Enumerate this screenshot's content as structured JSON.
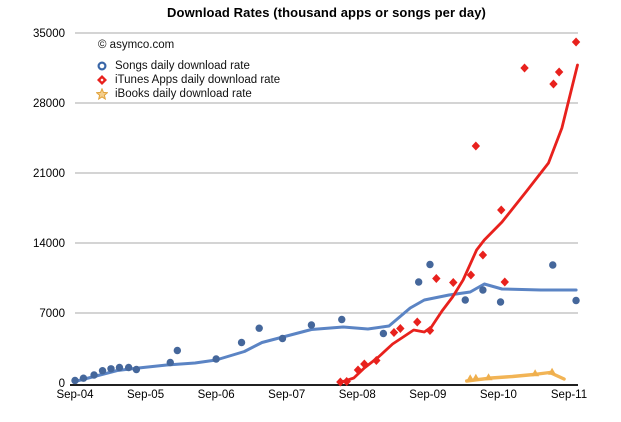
{
  "chart_data": {
    "type": "scatter",
    "title": "Download Rates (thousand apps or songs per day)",
    "copyright": "© asymco.com",
    "xlabel": "",
    "ylabel": "",
    "x_unit": "years since Sep-04",
    "xlim": [
      0,
      7.12
    ],
    "ylim": [
      0,
      35000
    ],
    "grid": "horizontal",
    "legend_position": "top-left-inside",
    "x_tick_labels": [
      "Sep-04",
      "Sep-05",
      "Sep-06",
      "Sep-07",
      "Sep-08",
      "Sep-09",
      "Sep-10",
      "Sep-11"
    ],
    "y_tick_values": [
      35000,
      28000,
      21000,
      14000,
      7000,
      0
    ],
    "colors": {
      "songs_marker": "#45679B",
      "songs_line": "#5B84C4",
      "apps_marker": "#E8211D",
      "apps_line": "#E8211D",
      "ibooks_marker": "#EFAF4D",
      "ibooks_line": "#F2B455",
      "gridline": "#A9A9A9",
      "axis": "#000000",
      "text": "#000000"
    },
    "series": [
      {
        "name": "Songs daily download rate",
        "marker": "circle",
        "points": [
          [
            0.0,
            250
          ],
          [
            0.12,
            480
          ],
          [
            0.27,
            800
          ],
          [
            0.39,
            1230
          ],
          [
            0.51,
            1420
          ],
          [
            0.63,
            1550
          ],
          [
            0.76,
            1550
          ],
          [
            0.87,
            1350
          ],
          [
            1.35,
            2050
          ],
          [
            1.45,
            3250
          ],
          [
            2.0,
            2400
          ],
          [
            2.36,
            4050
          ],
          [
            2.61,
            5480
          ],
          [
            2.94,
            4450
          ],
          [
            3.35,
            5800
          ],
          [
            3.78,
            6350
          ],
          [
            4.37,
            4950
          ],
          [
            4.87,
            10100
          ],
          [
            5.03,
            11850
          ],
          [
            5.53,
            8300
          ],
          [
            5.78,
            9300
          ],
          [
            6.03,
            8100
          ],
          [
            6.77,
            11800
          ],
          [
            7.1,
            8250
          ]
        ],
        "trend": [
          [
            0.0,
            150
          ],
          [
            0.3,
            700
          ],
          [
            0.6,
            1250
          ],
          [
            0.9,
            1500
          ],
          [
            1.3,
            1800
          ],
          [
            1.7,
            2000
          ],
          [
            2.0,
            2300
          ],
          [
            2.4,
            3150
          ],
          [
            2.65,
            4050
          ],
          [
            3.0,
            4700
          ],
          [
            3.35,
            5350
          ],
          [
            3.8,
            5600
          ],
          [
            4.15,
            5400
          ],
          [
            4.45,
            5700
          ],
          [
            4.75,
            7500
          ],
          [
            4.95,
            8300
          ],
          [
            5.3,
            8800
          ],
          [
            5.6,
            9100
          ],
          [
            5.8,
            9900
          ],
          [
            6.05,
            9400
          ],
          [
            6.6,
            9300
          ],
          [
            7.1,
            9300
          ]
        ]
      },
      {
        "name": "iTunes Apps daily download rate",
        "marker": "diamond",
        "points": [
          [
            3.76,
            100
          ],
          [
            3.85,
            150
          ],
          [
            4.01,
            1300
          ],
          [
            4.1,
            1900
          ],
          [
            4.27,
            2250
          ],
          [
            4.52,
            5050
          ],
          [
            4.61,
            5450
          ],
          [
            4.85,
            6100
          ],
          [
            5.03,
            5250
          ],
          [
            5.12,
            10450
          ],
          [
            5.36,
            10050
          ],
          [
            5.61,
            10800
          ],
          [
            5.68,
            23700
          ],
          [
            5.78,
            12800
          ],
          [
            6.04,
            17300
          ],
          [
            6.09,
            10100
          ],
          [
            6.37,
            31500
          ],
          [
            6.78,
            29900
          ],
          [
            6.86,
            31100
          ],
          [
            7.1,
            34100
          ]
        ],
        "trend": [
          [
            3.76,
            50
          ],
          [
            3.95,
            500
          ],
          [
            4.1,
            1500
          ],
          [
            4.3,
            2600
          ],
          [
            4.5,
            3900
          ],
          [
            4.65,
            4600
          ],
          [
            4.8,
            5300
          ],
          [
            4.95,
            5100
          ],
          [
            5.05,
            5600
          ],
          [
            5.2,
            7200
          ],
          [
            5.35,
            8600
          ],
          [
            5.5,
            10300
          ],
          [
            5.69,
            13300
          ],
          [
            5.8,
            14300
          ],
          [
            6.05,
            16100
          ],
          [
            6.4,
            19200
          ],
          [
            6.71,
            22000
          ],
          [
            6.9,
            25500
          ],
          [
            7.12,
            31800
          ]
        ]
      },
      {
        "name": "iBooks daily download rate",
        "marker": "triangle",
        "points": [
          [
            5.6,
            450
          ],
          [
            5.68,
            500
          ],
          [
            5.86,
            550
          ],
          [
            6.52,
            950
          ],
          [
            6.76,
            1100
          ]
        ],
        "trend": [
          [
            5.55,
            200
          ],
          [
            5.9,
            500
          ],
          [
            6.2,
            650
          ],
          [
            6.5,
            850
          ],
          [
            6.73,
            1050
          ],
          [
            6.93,
            400
          ]
        ]
      }
    ]
  }
}
